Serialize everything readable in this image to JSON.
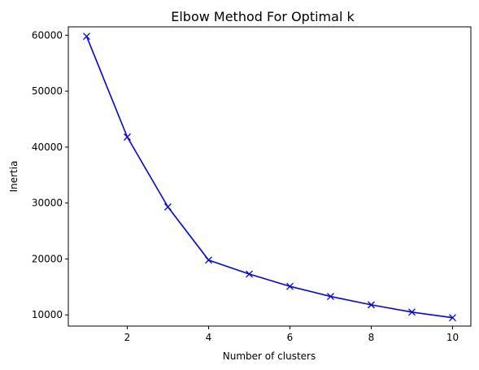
{
  "chart_data": {
    "type": "line",
    "title": "Elbow Method For Optimal k",
    "xlabel": "Number of clusters",
    "ylabel": "Inertia",
    "xlim": [
      0.55,
      10.45
    ],
    "ylim": [
      8000,
      61500
    ],
    "xticks": [
      2,
      4,
      6,
      8,
      10
    ],
    "yticks": [
      10000,
      20000,
      30000,
      40000,
      50000,
      60000
    ],
    "grid": false,
    "x": [
      1,
      2,
      3,
      4,
      5,
      6,
      7,
      8,
      9,
      10
    ],
    "series": [
      {
        "values": [
          59800,
          41800,
          29300,
          19800,
          17300,
          15100,
          13300,
          11800,
          10500,
          9500
        ],
        "color": "#0000ff",
        "marker": "x"
      }
    ]
  }
}
